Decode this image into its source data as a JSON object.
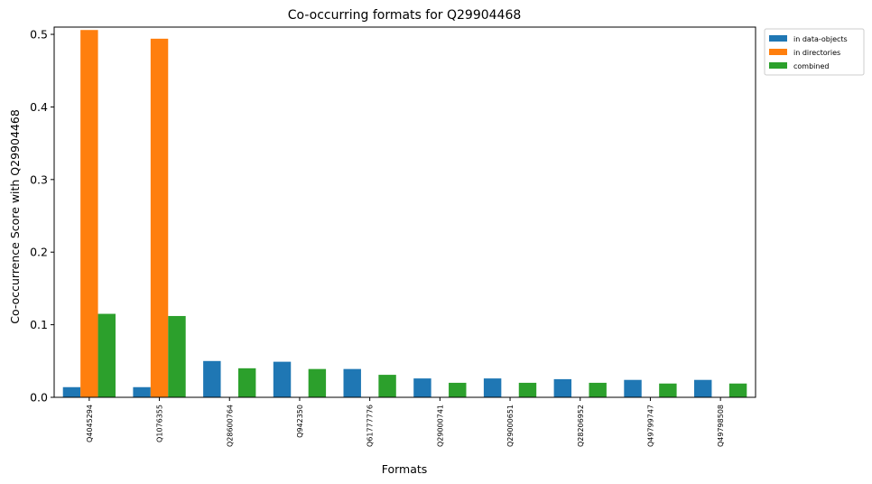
{
  "chart_data": {
    "type": "bar",
    "title": "Co-occurring formats for Q29904468",
    "xlabel": "Formats",
    "ylabel": "Co-occurrence Score with Q29904468",
    "ylim": [
      0,
      0.51
    ],
    "yticks": [
      0.0,
      0.1,
      0.2,
      0.3,
      0.4,
      0.5
    ],
    "ytick_labels": [
      "0.0",
      "0.1",
      "0.2",
      "0.3",
      "0.4",
      "0.5"
    ],
    "categories": [
      "Q4045294",
      "Q1076355",
      "Q28600764",
      "Q942350",
      "Q61777776",
      "Q29000741",
      "Q29000651",
      "Q28206952",
      "Q49799747",
      "Q49798508"
    ],
    "series": [
      {
        "name": "in data-objects",
        "color": "#1f77b4",
        "values": [
          0.014,
          0.014,
          0.05,
          0.049,
          0.039,
          0.026,
          0.026,
          0.025,
          0.024,
          0.024
        ]
      },
      {
        "name": "in directories",
        "color": "#ff7f0e",
        "values": [
          0.506,
          0.494,
          0.0,
          0.0,
          0.0,
          0.0,
          0.0,
          0.0,
          0.0,
          0.0
        ]
      },
      {
        "name": "combined",
        "color": "#2ca02c",
        "values": [
          0.115,
          0.112,
          0.04,
          0.039,
          0.031,
          0.02,
          0.02,
          0.02,
          0.019,
          0.019
        ]
      }
    ],
    "legend": "upper-right-outside",
    "grid": false
  }
}
